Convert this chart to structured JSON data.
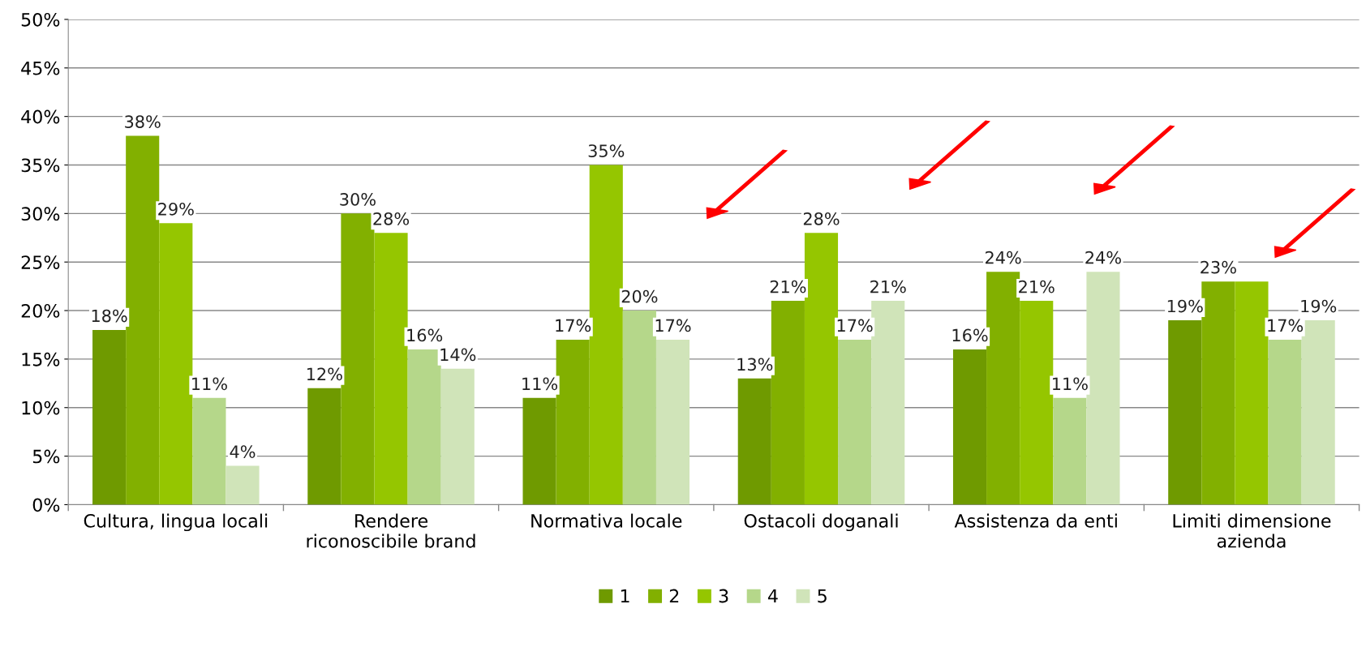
{
  "chart_data": {
    "type": "bar",
    "categories": [
      "Cultura, lingua locali",
      "Rendere\nriconoscibile brand",
      "Normativa locale",
      "Ostacoli doganali",
      "Assistenza da enti",
      "Limiti dimensione\nazienda"
    ],
    "series": [
      {
        "name": "1",
        "color": "#6f9a00",
        "values": [
          18,
          12,
          11,
          13,
          16,
          19
        ],
        "value_labels": [
          "18%",
          "12%",
          "11%",
          "13%",
          "16%",
          "19%"
        ]
      },
      {
        "name": "2",
        "color": "#82b000",
        "values": [
          38,
          30,
          17,
          21,
          24,
          23
        ],
        "value_labels": [
          "38%",
          "30%",
          "17%",
          "21%",
          "24%",
          "23%"
        ]
      },
      {
        "name": "3",
        "color": "#95c600",
        "values": [
          29,
          28,
          35,
          28,
          21,
          23
        ],
        "value_labels": [
          "29%",
          "28%",
          "35%",
          "28%",
          "21%",
          null
        ]
      },
      {
        "name": "4",
        "color": "#b5d78a",
        "values": [
          11,
          16,
          20,
          17,
          11,
          17
        ],
        "value_labels": [
          "11%",
          "16%",
          "20%",
          "17%",
          "11%",
          "17%"
        ]
      },
      {
        "name": "5",
        "color": "#d0e4b9",
        "values": [
          4,
          14,
          17,
          21,
          24,
          19
        ],
        "value_labels": [
          "4%",
          "14%",
          "17%",
          "21%",
          "24%",
          "19%"
        ]
      }
    ],
    "ylim": [
      0,
      50
    ],
    "yticks": [
      {
        "value": 0,
        "label": "0%"
      },
      {
        "value": 5,
        "label": "5%"
      },
      {
        "value": 10,
        "label": "10%"
      },
      {
        "value": 15,
        "label": "15%"
      },
      {
        "value": 20,
        "label": "20%"
      },
      {
        "value": 25,
        "label": "25%"
      },
      {
        "value": 30,
        "label": "30%"
      },
      {
        "value": 35,
        "label": "35%"
      },
      {
        "value": 40,
        "label": "40%"
      },
      {
        "value": 45,
        "label": "45%"
      },
      {
        "value": 50,
        "label": "50%"
      }
    ],
    "grid": "y",
    "legend": "bottom"
  }
}
